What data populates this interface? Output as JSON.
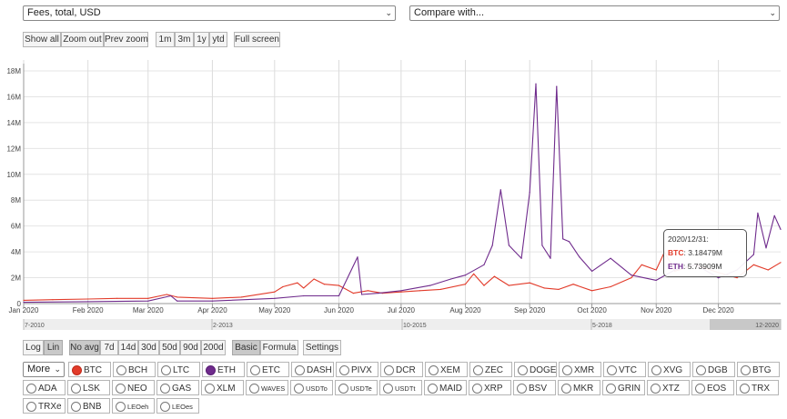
{
  "controls": {
    "metric_select": "Fees, total, USD",
    "compare_select": "Compare with...",
    "zoom_buttons": [
      "Show all",
      "Zoom out",
      "Prev zoom"
    ],
    "range_buttons": [
      "1m",
      "3m",
      "1y",
      "ytd"
    ],
    "fullscreen": "Full screen",
    "scale_buttons": [
      "Log",
      "Lin"
    ],
    "avg_buttons": [
      "No avg",
      "7d",
      "14d",
      "30d",
      "50d",
      "90d",
      "200d"
    ],
    "mode_buttons": [
      "Basic",
      "Formula"
    ],
    "settings": "Settings",
    "more_select": "More"
  },
  "navigator_labels": [
    "7-2010",
    "2-2013",
    "10-2015",
    "5-2018",
    "12-2020"
  ],
  "tooltip": {
    "date": "2020/12/31:",
    "btc_label": "BTC",
    "btc_value": ": 3.18479M",
    "eth_label": "ETH",
    "eth_value": ": 5.73909M"
  },
  "coins_row1": [
    "BTC",
    "BCH",
    "LTC",
    "ETH",
    "ETC",
    "DASH",
    "PIVX",
    "DCR",
    "XEM",
    "ZEC",
    "DOGE",
    "XMR",
    "VTC",
    "XVG",
    "DGB",
    "BTG"
  ],
  "coins_row2": [
    "ADA",
    "LSK",
    "NEO",
    "GAS",
    "XLM",
    "WAVES",
    "USDTo",
    "USDTe",
    "USDTt",
    "MAID",
    "XRP",
    "BSV",
    "MKR",
    "GRIN",
    "XTZ",
    "EOS",
    "TRX"
  ],
  "coins_row3": [
    "TRXe",
    "BNB",
    "LEOeh",
    "LEOes"
  ],
  "colors": {
    "btc": "#e23b2a",
    "eth": "#6f2b8c",
    "grid": "#d8d8d8"
  },
  "chart_data": {
    "type": "line",
    "title": "Fees, total, USD",
    "xlabel": "",
    "ylabel": "",
    "x_ticks": [
      "Jan 2020",
      "Feb 2020",
      "Mar 2020",
      "Apr 2020",
      "May 2020",
      "Jun 2020",
      "Jul 2020",
      "Aug 2020",
      "Sep 2020",
      "Oct 2020",
      "Nov 2020",
      "Dec 2020"
    ],
    "y_ticks": [
      "0",
      "2M",
      "4M",
      "6M",
      "8M",
      "10M",
      "12M",
      "14M",
      "16M",
      "18M"
    ],
    "ylim": [
      0,
      18.5
    ],
    "y_unit": "M USD",
    "grid": true,
    "series": [
      {
        "name": "BTC",
        "color": "#e23b2a",
        "points": [
          [
            "2020-01-01",
            0.25
          ],
          [
            "2020-01-15",
            0.3
          ],
          [
            "2020-02-01",
            0.35
          ],
          [
            "2020-02-15",
            0.4
          ],
          [
            "2020-03-01",
            0.4
          ],
          [
            "2020-03-10",
            0.7
          ],
          [
            "2020-03-15",
            0.5
          ],
          [
            "2020-04-01",
            0.4
          ],
          [
            "2020-04-15",
            0.5
          ],
          [
            "2020-05-01",
            0.9
          ],
          [
            "2020-05-05",
            1.3
          ],
          [
            "2020-05-12",
            1.6
          ],
          [
            "2020-05-15",
            1.2
          ],
          [
            "2020-05-20",
            1.9
          ],
          [
            "2020-05-25",
            1.5
          ],
          [
            "2020-06-01",
            1.4
          ],
          [
            "2020-06-08",
            0.8
          ],
          [
            "2020-06-15",
            1.0
          ],
          [
            "2020-06-22",
            0.8
          ],
          [
            "2020-07-01",
            0.9
          ],
          [
            "2020-07-10",
            1.0
          ],
          [
            "2020-07-20",
            1.1
          ],
          [
            "2020-08-01",
            1.5
          ],
          [
            "2020-08-05",
            2.3
          ],
          [
            "2020-08-10",
            1.4
          ],
          [
            "2020-08-15",
            2.1
          ],
          [
            "2020-08-22",
            1.4
          ],
          [
            "2020-09-01",
            1.6
          ],
          [
            "2020-09-08",
            1.2
          ],
          [
            "2020-09-15",
            1.1
          ],
          [
            "2020-09-22",
            1.5
          ],
          [
            "2020-10-01",
            1.0
          ],
          [
            "2020-10-10",
            1.3
          ],
          [
            "2020-10-20",
            2.0
          ],
          [
            "2020-10-25",
            3.0
          ],
          [
            "2020-11-01",
            2.6
          ],
          [
            "2020-11-05",
            4.0
          ],
          [
            "2020-11-10",
            2.5
          ],
          [
            "2020-11-20",
            3.0
          ],
          [
            "2020-12-01",
            2.4
          ],
          [
            "2020-12-10",
            2.0
          ],
          [
            "2020-12-18",
            3.0
          ],
          [
            "2020-12-25",
            2.6
          ],
          [
            "2020-12-31",
            3.18
          ]
        ]
      },
      {
        "name": "ETH",
        "color": "#6f2b8c",
        "points": [
          [
            "2020-01-01",
            0.1
          ],
          [
            "2020-02-01",
            0.15
          ],
          [
            "2020-03-01",
            0.2
          ],
          [
            "2020-03-12",
            0.6
          ],
          [
            "2020-03-15",
            0.2
          ],
          [
            "2020-04-01",
            0.2
          ],
          [
            "2020-05-01",
            0.4
          ],
          [
            "2020-05-15",
            0.6
          ],
          [
            "2020-06-01",
            0.6
          ],
          [
            "2020-06-10",
            3.6
          ],
          [
            "2020-06-12",
            0.7
          ],
          [
            "2020-06-20",
            0.8
          ],
          [
            "2020-07-01",
            1.0
          ],
          [
            "2020-07-15",
            1.4
          ],
          [
            "2020-07-25",
            1.9
          ],
          [
            "2020-08-01",
            2.2
          ],
          [
            "2020-08-10",
            3.0
          ],
          [
            "2020-08-14",
            4.5
          ],
          [
            "2020-08-18",
            8.8
          ],
          [
            "2020-08-22",
            4.5
          ],
          [
            "2020-08-28",
            3.5
          ],
          [
            "2020-09-01",
            8.6
          ],
          [
            "2020-09-04",
            17.0
          ],
          [
            "2020-09-07",
            4.5
          ],
          [
            "2020-09-11",
            3.5
          ],
          [
            "2020-09-14",
            16.8
          ],
          [
            "2020-09-17",
            5.0
          ],
          [
            "2020-09-20",
            4.8
          ],
          [
            "2020-09-25",
            3.6
          ],
          [
            "2020-10-01",
            2.5
          ],
          [
            "2020-10-10",
            3.5
          ],
          [
            "2020-10-20",
            2.2
          ],
          [
            "2020-11-01",
            1.8
          ],
          [
            "2020-11-10",
            2.6
          ],
          [
            "2020-11-20",
            3.0
          ],
          [
            "2020-12-01",
            2.0
          ],
          [
            "2020-12-10",
            2.6
          ],
          [
            "2020-12-18",
            3.8
          ],
          [
            "2020-12-20",
            7.0
          ],
          [
            "2020-12-24",
            4.3
          ],
          [
            "2020-12-28",
            6.8
          ],
          [
            "2020-12-31",
            5.74
          ]
        ]
      }
    ]
  }
}
